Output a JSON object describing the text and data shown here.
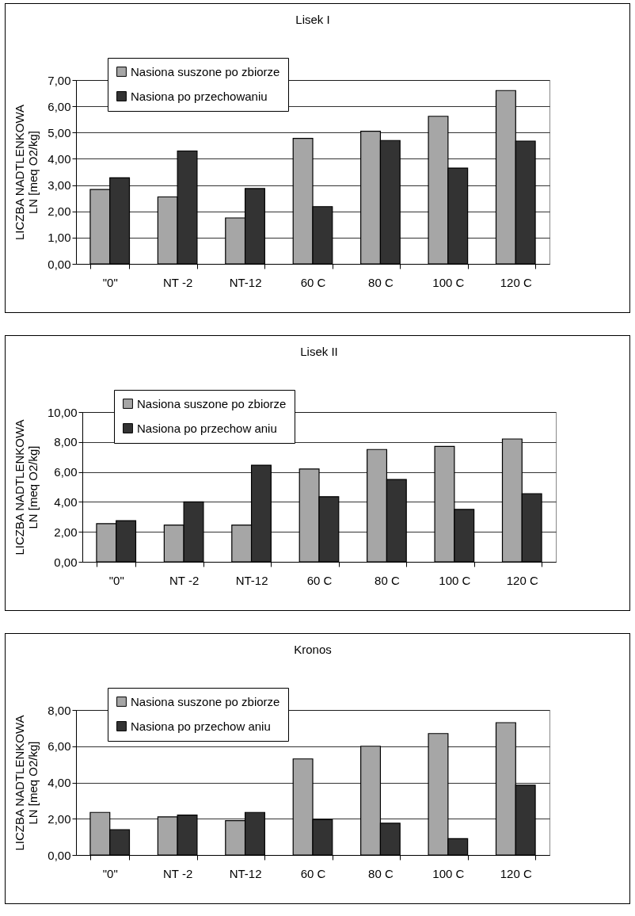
{
  "chart_data": [
    {
      "type": "bar",
      "title": "Lisek I",
      "ylabel": "LICZBA NADTLENKOWA\nLN [meq O2/kg]",
      "categories": [
        "\"0\"",
        "NT -2",
        "NT-12",
        "60 C",
        "80 C",
        "100 C",
        "120 C"
      ],
      "series": [
        {
          "name": "Nasiona suszone po zbiorze",
          "color": "#a6a6a6",
          "values": [
            2.83,
            2.55,
            1.75,
            4.78,
            5.05,
            5.62,
            6.6
          ]
        },
        {
          "name": "Nasiona po przechowaniu",
          "color": "#333333",
          "values": [
            3.28,
            4.3,
            2.87,
            2.18,
            4.7,
            3.65,
            4.67
          ]
        }
      ],
      "ylim": [
        0,
        7
      ],
      "yticks": [
        {
          "value": 0,
          "label": "0,00"
        },
        {
          "value": 1,
          "label": "1,00"
        },
        {
          "value": 2,
          "label": "2,00"
        },
        {
          "value": 3,
          "label": "3,00"
        },
        {
          "value": 4,
          "label": "4,00"
        },
        {
          "value": 5,
          "label": "5,00"
        },
        {
          "value": 6,
          "label": "6,00"
        },
        {
          "value": 7,
          "label": "7,00"
        }
      ],
      "grid": "y",
      "legend": "top left"
    },
    {
      "type": "bar",
      "title": "Lisek II",
      "ylabel": "LICZBA NADTLENKOWA\nLN [meq O2/kg]",
      "categories": [
        "\"0\"",
        "NT -2",
        "NT-12",
        "60 C",
        "80 C",
        "100 C",
        "120 C"
      ],
      "series": [
        {
          "name": "Nasiona suszone po zbiorze",
          "color": "#a6a6a6",
          "values": [
            2.55,
            2.45,
            2.45,
            6.2,
            7.5,
            7.7,
            8.2
          ]
        },
        {
          "name": "Nasiona po przechow aniu",
          "color": "#333333",
          "values": [
            2.75,
            4.0,
            6.45,
            4.35,
            5.5,
            3.5,
            4.55
          ]
        }
      ],
      "ylim": [
        0,
        10
      ],
      "yticks": [
        {
          "value": 0,
          "label": "0,00"
        },
        {
          "value": 2,
          "label": "2,00"
        },
        {
          "value": 4,
          "label": "4,00"
        },
        {
          "value": 6,
          "label": "6,00"
        },
        {
          "value": 8,
          "label": "8,00"
        },
        {
          "value": 10,
          "label": "10,00"
        }
      ],
      "grid": "y",
      "legend": "top left"
    },
    {
      "type": "bar",
      "title": "Kronos",
      "ylabel": "LICZBA NADTLENKOWA\nLN [meq O2/kg]",
      "categories": [
        "\"0\"",
        "NT -2",
        "NT-12",
        "60 C",
        "80 C",
        "100 C",
        "120 C"
      ],
      "series": [
        {
          "name": "Nasiona suszone po zbiorze",
          "color": "#a6a6a6",
          "values": [
            2.35,
            2.1,
            1.9,
            5.3,
            6.0,
            6.7,
            7.3
          ]
        },
        {
          "name": "Nasiona po przechow aniu",
          "color": "#333333",
          "values": [
            1.4,
            2.2,
            2.35,
            1.95,
            1.75,
            0.9,
            3.85
          ]
        }
      ],
      "ylim": [
        0,
        8
      ],
      "yticks": [
        {
          "value": 0,
          "label": "0,00"
        },
        {
          "value": 2,
          "label": "2,00"
        },
        {
          "value": 4,
          "label": "4,00"
        },
        {
          "value": 6,
          "label": "6,00"
        },
        {
          "value": 8,
          "label": "8,00"
        }
      ],
      "grid": "y",
      "legend": "top left"
    }
  ]
}
